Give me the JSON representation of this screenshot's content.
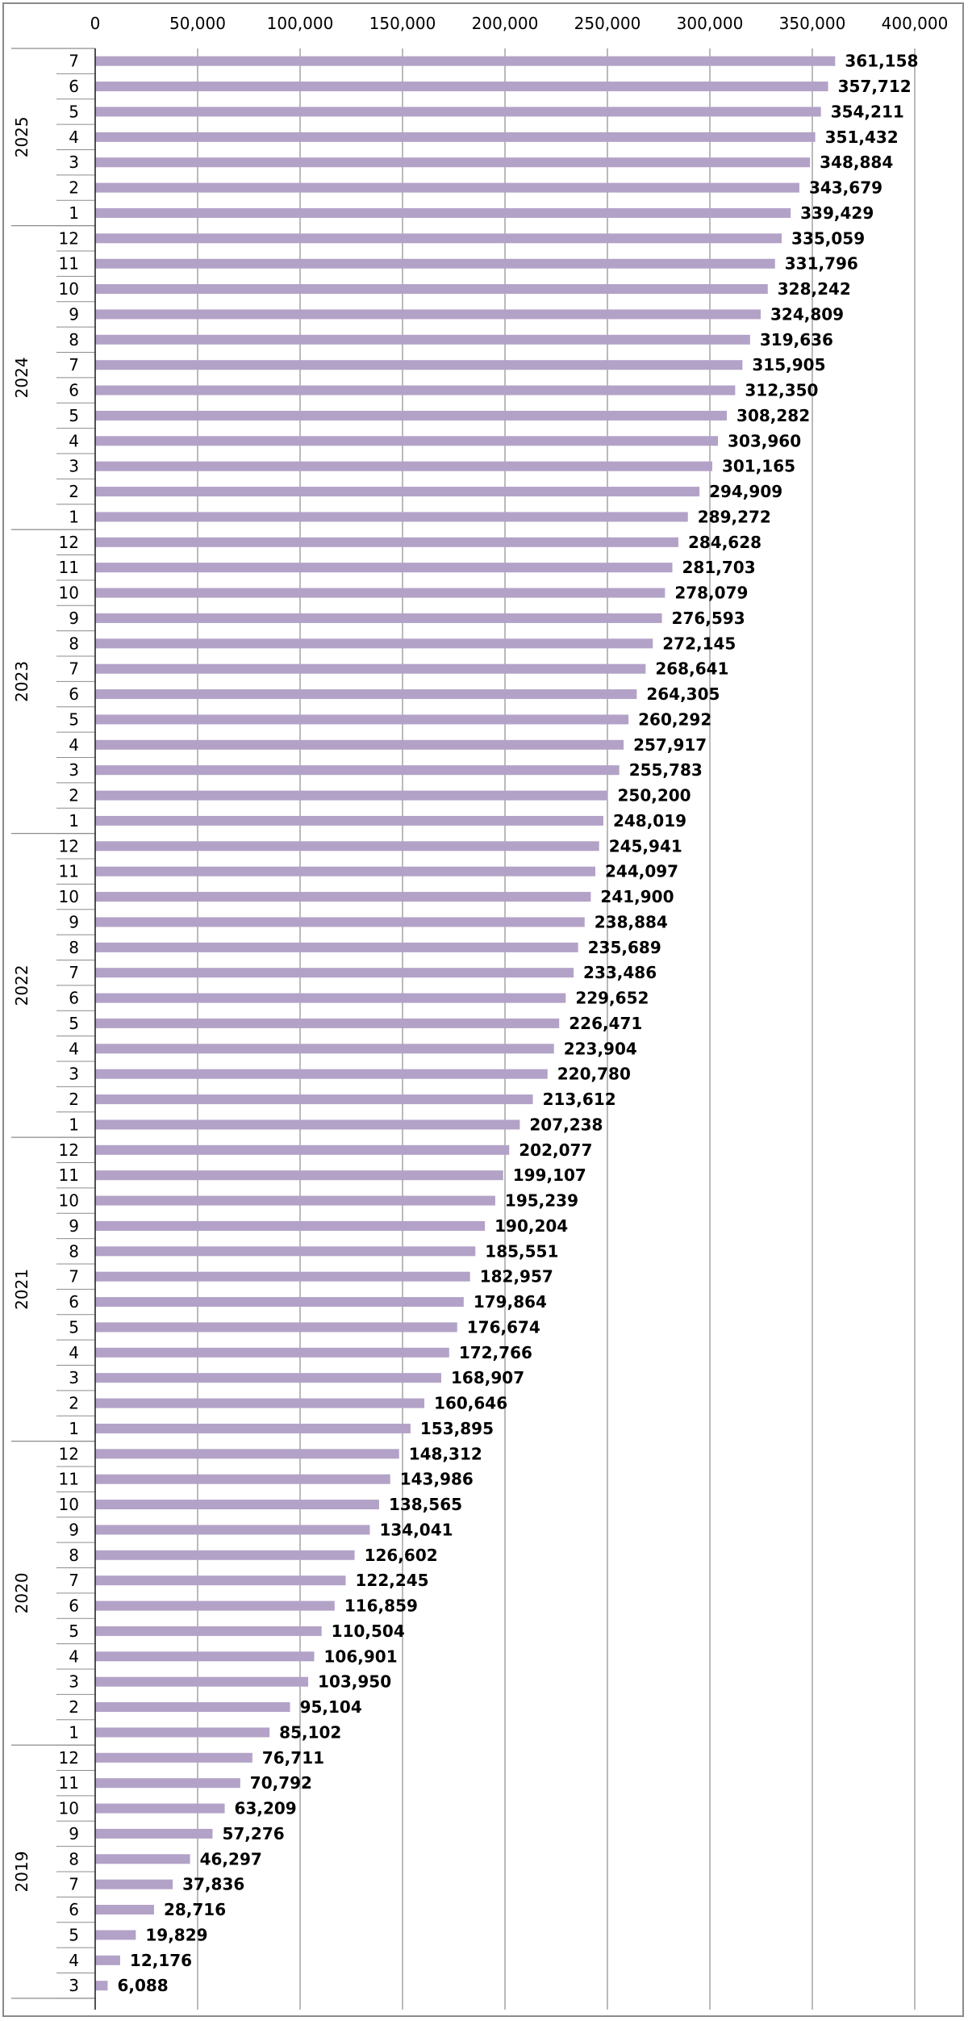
{
  "chart_data": {
    "type": "bar",
    "orientation": "horizontal",
    "title": "",
    "xlabel": "",
    "ylabel": "",
    "xlim": [
      0,
      400000
    ],
    "x_ticks": [
      "0",
      "50,000",
      "100,000",
      "150,000",
      "200,000",
      "250,000",
      "300,000",
      "350,000",
      "400,000"
    ],
    "x_tick_values": [
      0,
      50000,
      100000,
      150000,
      200000,
      250000,
      300000,
      350000,
      400000
    ],
    "grid": "vertical",
    "bar_color": "#b3a2c7",
    "years": [
      {
        "year": "2025",
        "months": [
          "7",
          "6",
          "5",
          "4",
          "3",
          "2",
          "1"
        ],
        "values": [
          361158,
          357712,
          354211,
          351432,
          348884,
          343679,
          339429
        ],
        "labels": [
          "361,158",
          "357,712",
          "354,211",
          "351,432",
          "348,884",
          "343,679",
          "339,429"
        ]
      },
      {
        "year": "2024",
        "months": [
          "12",
          "11",
          "10",
          "9",
          "8",
          "7",
          "6",
          "5",
          "4",
          "3",
          "2",
          "1"
        ],
        "values": [
          335059,
          331796,
          328242,
          324809,
          319636,
          315905,
          312350,
          308282,
          303960,
          301165,
          294909,
          289272
        ],
        "labels": [
          "335,059",
          "331,796",
          "328,242",
          "324,809",
          "319,636",
          "315,905",
          "312,350",
          "308,282",
          "303,960",
          "301,165",
          "294,909",
          "289,272"
        ]
      },
      {
        "year": "2023",
        "months": [
          "12",
          "11",
          "10",
          "9",
          "8",
          "7",
          "6",
          "5",
          "4",
          "3",
          "2",
          "1"
        ],
        "values": [
          284628,
          281703,
          278079,
          276593,
          272145,
          268641,
          264305,
          260292,
          257917,
          255783,
          250200,
          248019
        ],
        "labels": [
          "284,628",
          "281,703",
          "278,079",
          "276,593",
          "272,145",
          "268,641",
          "264,305",
          "260,292",
          "257,917",
          "255,783",
          "250,200",
          "248,019"
        ]
      },
      {
        "year": "2022",
        "months": [
          "12",
          "11",
          "10",
          "9",
          "8",
          "7",
          "6",
          "5",
          "4",
          "3",
          "2",
          "1"
        ],
        "values": [
          245941,
          244097,
          241900,
          238884,
          235689,
          233486,
          229652,
          226471,
          223904,
          220780,
          213612,
          207238
        ],
        "labels": [
          "245,941",
          "244,097",
          "241,900",
          "238,884",
          "235,689",
          "233,486",
          "229,652",
          "226,471",
          "223,904",
          "220,780",
          "213,612",
          "207,238"
        ]
      },
      {
        "year": "2021",
        "months": [
          "12",
          "11",
          "10",
          "9",
          "8",
          "7",
          "6",
          "5",
          "4",
          "3",
          "2",
          "1"
        ],
        "values": [
          202077,
          199107,
          195239,
          190204,
          185551,
          182957,
          179864,
          176674,
          172766,
          168907,
          160646,
          153895
        ],
        "labels": [
          "202,077",
          "199,107",
          "195,239",
          "190,204",
          "185,551",
          "182,957",
          "179,864",
          "176,674",
          "172,766",
          "168,907",
          "160,646",
          "153,895"
        ]
      },
      {
        "year": "2020",
        "months": [
          "12",
          "11",
          "10",
          "9",
          "8",
          "7",
          "6",
          "5",
          "4",
          "3",
          "2",
          "1"
        ],
        "values": [
          148312,
          143986,
          138565,
          134041,
          126602,
          122245,
          116859,
          110504,
          106901,
          103950,
          95104,
          85102
        ],
        "labels": [
          "148,312",
          "143,986",
          "138,565",
          "134,041",
          "126,602",
          "122,245",
          "116,859",
          "110,504",
          "106,901",
          "103,950",
          "95,104",
          "85,102"
        ]
      },
      {
        "year": "2019",
        "months": [
          "12",
          "11",
          "10",
          "9",
          "8",
          "7",
          "6",
          "5",
          "4",
          "3"
        ],
        "values": [
          76711,
          70792,
          63209,
          57276,
          46297,
          37836,
          28716,
          19829,
          12176,
          6088
        ],
        "labels": [
          "76,711",
          "70,792",
          "63,209",
          "57,276",
          "46,297",
          "37,836",
          "28,716",
          "19,829",
          "12,176",
          "6,088"
        ]
      }
    ]
  }
}
